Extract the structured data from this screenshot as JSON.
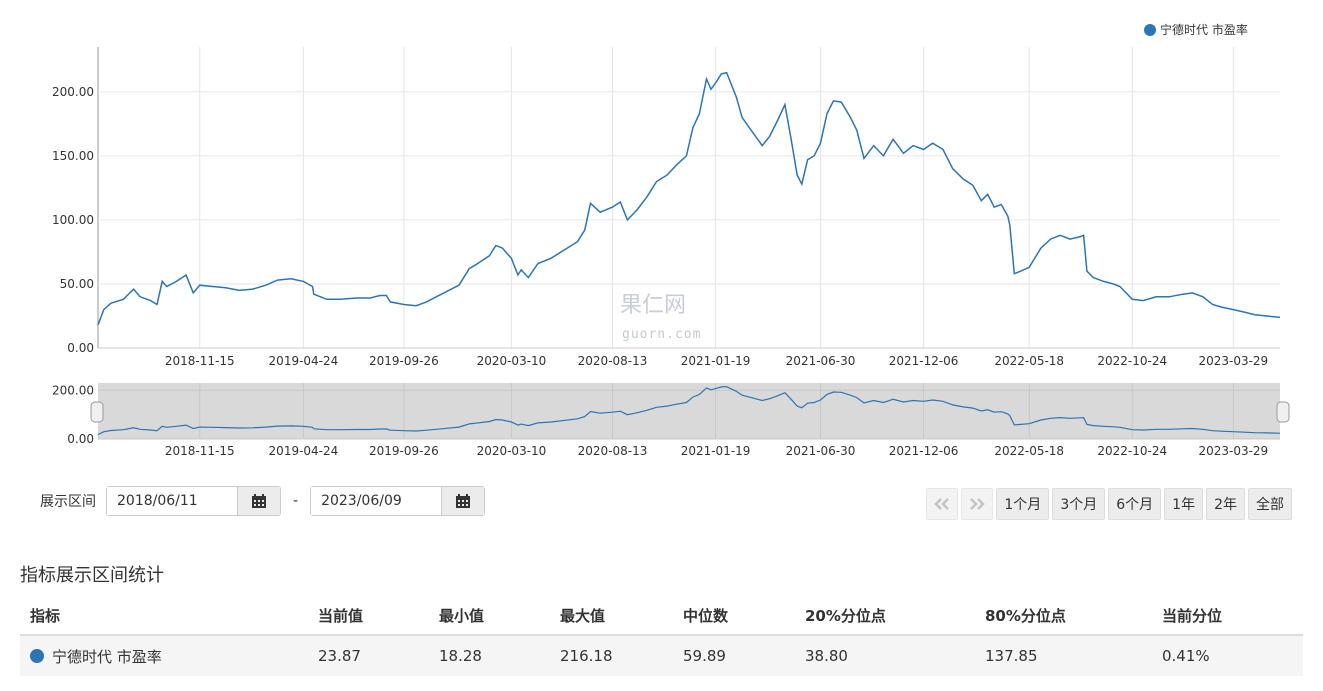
{
  "colors": {
    "series": "#2c74b5",
    "navigator_bg": "#d9d9d9",
    "grid": "#e6e6e6"
  },
  "chart_data": {
    "type": "line",
    "series": [
      {
        "name": "宁德时代 市盈率",
        "points": [
          [
            "2018-06-11",
            18.0
          ],
          [
            "2018-06-20",
            30.0
          ],
          [
            "2018-07-01",
            35.0
          ],
          [
            "2018-07-20",
            38.0
          ],
          [
            "2018-08-05",
            46.0
          ],
          [
            "2018-08-15",
            40.0
          ],
          [
            "2018-08-31",
            37.0
          ],
          [
            "2018-09-10",
            34.0
          ],
          [
            "2018-09-18",
            52.0
          ],
          [
            "2018-09-25",
            48.0
          ],
          [
            "2018-10-10",
            52.0
          ],
          [
            "2018-10-25",
            57.0
          ],
          [
            "2018-11-05",
            43.0
          ],
          [
            "2018-11-15",
            49.0
          ],
          [
            "2018-12-05",
            48.0
          ],
          [
            "2018-12-25",
            47.0
          ],
          [
            "2019-01-15",
            45.0
          ],
          [
            "2019-02-05",
            46.0
          ],
          [
            "2019-02-25",
            49.0
          ],
          [
            "2019-03-15",
            53.0
          ],
          [
            "2019-04-05",
            54.0
          ],
          [
            "2019-04-24",
            52.0
          ],
          [
            "2019-05-08",
            48.0
          ],
          [
            "2019-05-10",
            42.0
          ],
          [
            "2019-05-30",
            38.0
          ],
          [
            "2019-06-20",
            38.0
          ],
          [
            "2019-07-15",
            39.0
          ],
          [
            "2019-08-05",
            39.0
          ],
          [
            "2019-08-20",
            41.0
          ],
          [
            "2019-08-30",
            41.0
          ],
          [
            "2019-09-05",
            36.0
          ],
          [
            "2019-09-26",
            34.0
          ],
          [
            "2019-10-15",
            33.0
          ],
          [
            "2019-10-31",
            36.0
          ],
          [
            "2019-11-15",
            40.0
          ],
          [
            "2019-12-01",
            44.0
          ],
          [
            "2019-12-20",
            49.0
          ],
          [
            "2020-01-05",
            62.0
          ],
          [
            "2020-01-15",
            65.0
          ],
          [
            "2020-02-05",
            72.0
          ],
          [
            "2020-02-15",
            80.0
          ],
          [
            "2020-02-25",
            78.0
          ],
          [
            "2020-03-10",
            70.0
          ],
          [
            "2020-03-20",
            57.0
          ],
          [
            "2020-03-25",
            61.0
          ],
          [
            "2020-04-05",
            55.0
          ],
          [
            "2020-04-20",
            66.0
          ],
          [
            "2020-05-10",
            70.0
          ],
          [
            "2020-06-01",
            77.0
          ],
          [
            "2020-06-20",
            83.0
          ],
          [
            "2020-07-01",
            92.0
          ],
          [
            "2020-07-10",
            113.0
          ],
          [
            "2020-07-25",
            106.0
          ],
          [
            "2020-08-13",
            110.0
          ],
          [
            "2020-08-25",
            114.0
          ],
          [
            "2020-09-05",
            100.0
          ],
          [
            "2020-09-20",
            108.0
          ],
          [
            "2020-10-05",
            118.0
          ],
          [
            "2020-10-20",
            130.0
          ],
          [
            "2020-11-05",
            135.0
          ],
          [
            "2020-11-20",
            143.0
          ],
          [
            "2020-12-05",
            150.0
          ],
          [
            "2020-12-15",
            172.0
          ],
          [
            "2020-12-25",
            183.0
          ],
          [
            "2021-01-05",
            210.0
          ],
          [
            "2021-01-12",
            202.0
          ],
          [
            "2021-01-19",
            207.0
          ],
          [
            "2021-01-28",
            214.0
          ],
          [
            "2021-02-05",
            215.0
          ],
          [
            "2021-02-20",
            196.0
          ],
          [
            "2021-03-01",
            180.0
          ],
          [
            "2021-03-15",
            170.0
          ],
          [
            "2021-04-01",
            158.0
          ],
          [
            "2021-04-12",
            165.0
          ],
          [
            "2021-04-25",
            178.0
          ],
          [
            "2021-05-06",
            190.0
          ],
          [
            "2021-05-15",
            165.0
          ],
          [
            "2021-05-25",
            135.0
          ],
          [
            "2021-06-01",
            128.0
          ],
          [
            "2021-06-10",
            147.0
          ],
          [
            "2021-06-20",
            150.0
          ],
          [
            "2021-06-30",
            160.0
          ],
          [
            "2021-07-10",
            183.0
          ],
          [
            "2021-07-20",
            193.0
          ],
          [
            "2021-08-01",
            192.0
          ],
          [
            "2021-08-15",
            180.0
          ],
          [
            "2021-08-25",
            170.0
          ],
          [
            "2021-09-05",
            148.0
          ],
          [
            "2021-09-20",
            158.0
          ],
          [
            "2021-10-05",
            150.0
          ],
          [
            "2021-10-20",
            163.0
          ],
          [
            "2021-11-05",
            152.0
          ],
          [
            "2021-11-20",
            158.0
          ],
          [
            "2021-12-06",
            155.0
          ],
          [
            "2021-12-20",
            160.0
          ],
          [
            "2022-01-05",
            155.0
          ],
          [
            "2022-01-20",
            140.0
          ],
          [
            "2022-02-05",
            132.0
          ],
          [
            "2022-02-20",
            127.0
          ],
          [
            "2022-03-05",
            115.0
          ],
          [
            "2022-03-15",
            120.0
          ],
          [
            "2022-03-25",
            110.0
          ],
          [
            "2022-04-05",
            112.0
          ],
          [
            "2022-04-15",
            103.0
          ],
          [
            "2022-04-18",
            96.0
          ],
          [
            "2022-04-25",
            58.0
          ],
          [
            "2022-05-05",
            60.0
          ],
          [
            "2022-05-18",
            63.0
          ],
          [
            "2022-06-05",
            78.0
          ],
          [
            "2022-06-20",
            85.0
          ],
          [
            "2022-07-05",
            88.0
          ],
          [
            "2022-07-20",
            85.0
          ],
          [
            "2022-08-05",
            87.0
          ],
          [
            "2022-08-10",
            88.0
          ],
          [
            "2022-08-15",
            60.0
          ],
          [
            "2022-08-25",
            55.0
          ],
          [
            "2022-09-10",
            52.0
          ],
          [
            "2022-09-25",
            50.0
          ],
          [
            "2022-10-05",
            48.0
          ],
          [
            "2022-10-24",
            38.0
          ],
          [
            "2022-11-10",
            37.0
          ],
          [
            "2022-11-30",
            40.0
          ],
          [
            "2022-12-20",
            40.0
          ],
          [
            "2023-01-10",
            42.0
          ],
          [
            "2023-01-25",
            43.0
          ],
          [
            "2023-02-10",
            40.0
          ],
          [
            "2023-02-25",
            34.0
          ],
          [
            "2023-03-10",
            32.0
          ],
          [
            "2023-03-29",
            30.0
          ],
          [
            "2023-04-15",
            28.0
          ],
          [
            "2023-05-01",
            26.0
          ],
          [
            "2023-05-20",
            25.0
          ],
          [
            "2023-06-09",
            23.87
          ]
        ]
      }
    ],
    "x_ticks": [
      "2018-11-15",
      "2019-04-24",
      "2019-09-26",
      "2020-03-10",
      "2020-08-13",
      "2021-01-19",
      "2021-06-30",
      "2021-12-06",
      "2022-05-18",
      "2022-10-24",
      "2023-03-29"
    ],
    "x_range": [
      "2018-06-11",
      "2023-06-09"
    ],
    "y_ticks": [
      "0.00",
      "50.00",
      "100.00",
      "150.00",
      "200.00"
    ],
    "y_range": [
      0,
      235
    ],
    "navigator_y_ticks": [
      "0.00",
      "200.00"
    ],
    "navigator_y_range": [
      0,
      230
    ],
    "grid": true,
    "legend_position": "top-right"
  },
  "watermark": {
    "cn": "果仁网",
    "en": "guorn.com"
  },
  "range": {
    "label": "展示区间",
    "start": "2018/06/11",
    "separator": "-",
    "end": "2023/06/09"
  },
  "period_buttons": [
    "1个月",
    "3个月",
    "6个月",
    "1年",
    "2年",
    "全部"
  ],
  "stats": {
    "title": "指标展示区间统计",
    "headers": [
      "指标",
      "当前值",
      "最小值",
      "最大值",
      "中位数",
      "20%分位点",
      "80%分位点",
      "当前分位"
    ],
    "row": [
      "宁德时代 市盈率",
      "23.87",
      "18.28",
      "216.18",
      "59.89",
      "38.80",
      "137.85",
      "0.41%"
    ]
  }
}
